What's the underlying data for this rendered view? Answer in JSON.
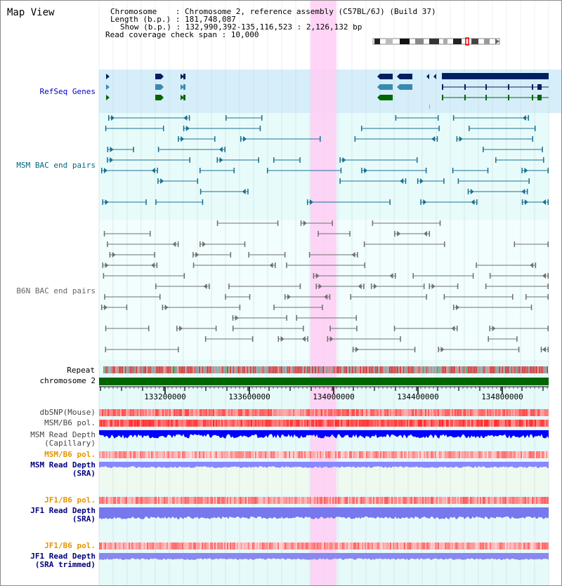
{
  "header": {
    "title": "Map View",
    "chromosome_line": "Chromosome    : Chromosome 2, reference assembly (C57BL/6J) (Build 37)",
    "length_line": "Length (b.p.) : 181,748,087",
    "show_line": "Show (b.p.) : 132,990,392-135,116,523 : 2,126,132 bp",
    "coverage_line": "Read coverage check span : 10,000"
  },
  "tracks": {
    "refseq": "RefSeq Genes",
    "msm_bac": "MSM BAC end pairs",
    "b6n_bac": "B6N BAC end pairs",
    "repeat": "Repeat",
    "chromosome": "chromosome 2",
    "dbsnp": "dbSNP(Mouse)",
    "msm_b6_pol": "MSM/B6 pol.",
    "msm_depth_cap_1": "MSM Read Depth",
    "msm_depth_cap_2": "(Capillary)",
    "msm_b6_pol_2": "MSM/B6 pol.",
    "msm_depth_sra_1": "MSM Read Depth",
    "msm_depth_sra_2": "(SRA)",
    "jf1_b6_pol": "JF1/B6 pol.",
    "jf1_depth_sra_1": "JF1 Read Depth",
    "jf1_depth_sra_2": "(SRA)",
    "jf1_b6_pol_2": "JF1/B6 pol.",
    "jf1_depth_trim_1": "JF1 Read Depth",
    "jf1_depth_trim_2": "(SRA trimmed)"
  },
  "axis": {
    "ticks": [
      "133200000",
      "133600000",
      "134000000",
      "134400000",
      "134800000"
    ]
  },
  "colors": {
    "refseq_label": "#0000cc",
    "msm_label": "#006680",
    "b6n_label": "#666666",
    "orange_label": "#e69500",
    "navy_label": "#000080",
    "highlight": "#ffccff",
    "chromosome_bar": "#006600"
  }
}
